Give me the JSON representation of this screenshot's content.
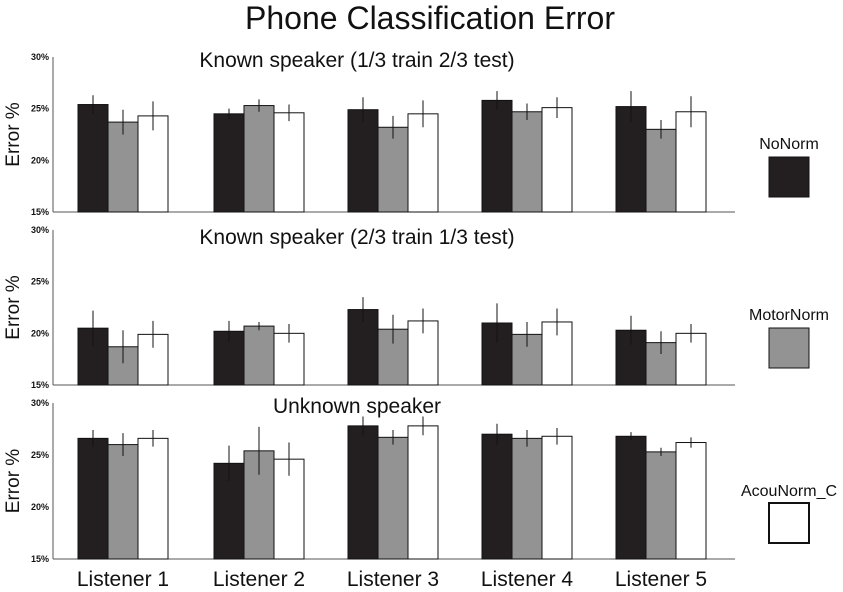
{
  "chart_data": {
    "type": "bar",
    "title": "Phone Classification Error",
    "categories": [
      "Listener 1",
      "Listener 2",
      "Listener 3",
      "Listener 4",
      "Listener 5"
    ],
    "series": [
      {
        "name": "NoNorm",
        "color": "#231f20"
      },
      {
        "name": "MotorNorm",
        "color": "#939393"
      },
      {
        "name": "AcouNorm_C",
        "color": "#ffffff"
      }
    ],
    "panels": [
      {
        "title": "Known speaker (1/3 train 2/3 test)",
        "ylabel": "Error %",
        "ylim": [
          15,
          30
        ],
        "yticks": [
          "15%",
          "20%",
          "25%",
          "30%"
        ],
        "values": [
          [
            25.4,
            24.5,
            24.9,
            25.8,
            25.2
          ],
          [
            23.7,
            25.3,
            23.2,
            24.7,
            23.0
          ],
          [
            24.3,
            24.6,
            24.5,
            25.1,
            24.7
          ]
        ],
        "errors": [
          [
            0.9,
            0.5,
            1.2,
            0.9,
            1.5
          ],
          [
            1.2,
            0.6,
            1.1,
            0.8,
            0.9
          ],
          [
            1.4,
            0.8,
            1.3,
            1.0,
            1.5
          ]
        ]
      },
      {
        "title": "Known speaker (2/3 train 1/3 test)",
        "ylabel": "Error %",
        "ylim": [
          15,
          30
        ],
        "yticks": [
          "15%",
          "20%",
          "25%",
          "30%"
        ],
        "values": [
          [
            20.5,
            20.2,
            22.3,
            21.0,
            20.3
          ],
          [
            18.7,
            20.7,
            20.4,
            19.9,
            19.1
          ],
          [
            19.9,
            20.0,
            21.2,
            21.1,
            20.0
          ]
        ],
        "errors": [
          [
            1.7,
            1.0,
            1.2,
            1.9,
            1.4
          ],
          [
            1.6,
            0.4,
            1.4,
            1.2,
            1.1
          ],
          [
            1.3,
            0.9,
            1.2,
            1.3,
            0.9
          ]
        ]
      },
      {
        "title": "Unknown speaker",
        "ylabel": "Error %",
        "ylim": [
          15,
          30
        ],
        "yticks": [
          "15%",
          "20%",
          "25%",
          "30%"
        ],
        "values": [
          [
            26.6,
            24.2,
            27.8,
            27.0,
            26.8
          ],
          [
            26.0,
            25.4,
            26.7,
            26.6,
            25.3
          ],
          [
            26.6,
            24.6,
            27.8,
            26.8,
            26.2
          ]
        ],
        "errors": [
          [
            0.8,
            1.7,
            0.9,
            1.0,
            0.4
          ],
          [
            1.1,
            2.3,
            0.7,
            0.8,
            0.4
          ],
          [
            0.8,
            1.6,
            0.9,
            0.8,
            0.5
          ]
        ]
      }
    ]
  }
}
